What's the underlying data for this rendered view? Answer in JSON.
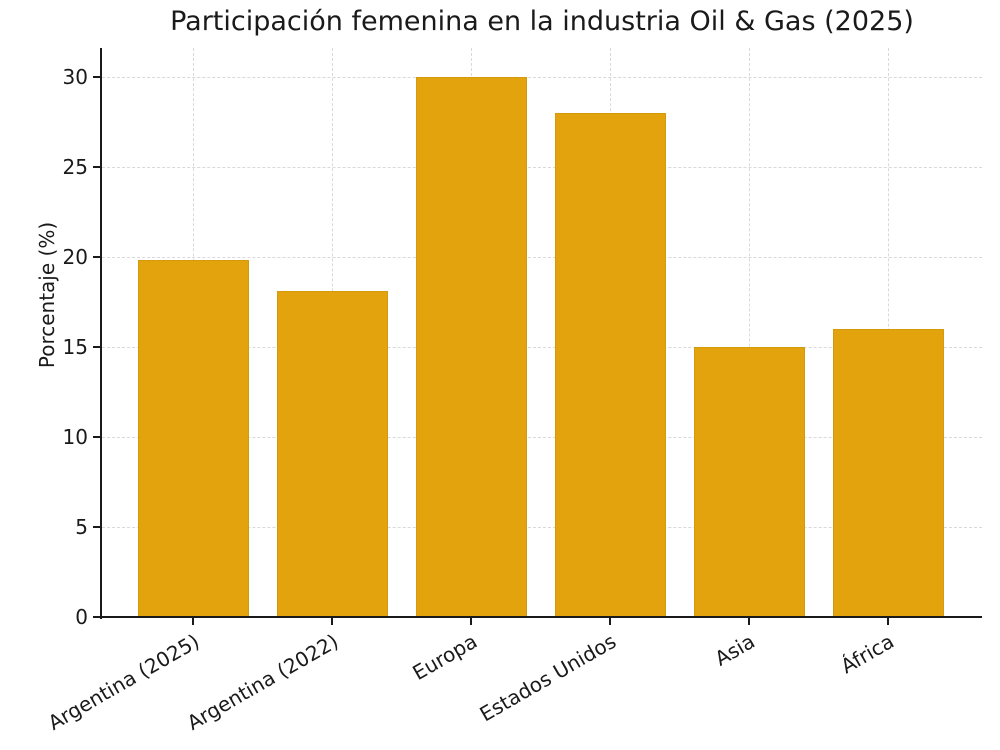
{
  "chart_data": {
    "type": "bar",
    "title": "Participación femenina en la industria Oil & Gas (2025)",
    "categories": [
      "Argentina (2025)",
      "Argentina (2022)",
      "Europa",
      "Estados Unidos",
      "Asia",
      "África"
    ],
    "values": [
      19.8,
      18.1,
      30,
      28,
      15,
      16
    ],
    "xlabel": "",
    "ylabel": "Porcentaje (%)",
    "yticks": [
      0,
      5,
      10,
      15,
      20,
      25,
      30
    ],
    "ylim": [
      0,
      31.6
    ],
    "grid": "dashed-both-axes-behind-bars",
    "legend": "none",
    "x_tick_rotation_deg": 30,
    "bar_color": "#E2A30D",
    "grid_color": "#D9D9D9",
    "spine_color": "#1A1A1A",
    "text_color": "#1A1A1A",
    "background": "#FFFFFF"
  }
}
